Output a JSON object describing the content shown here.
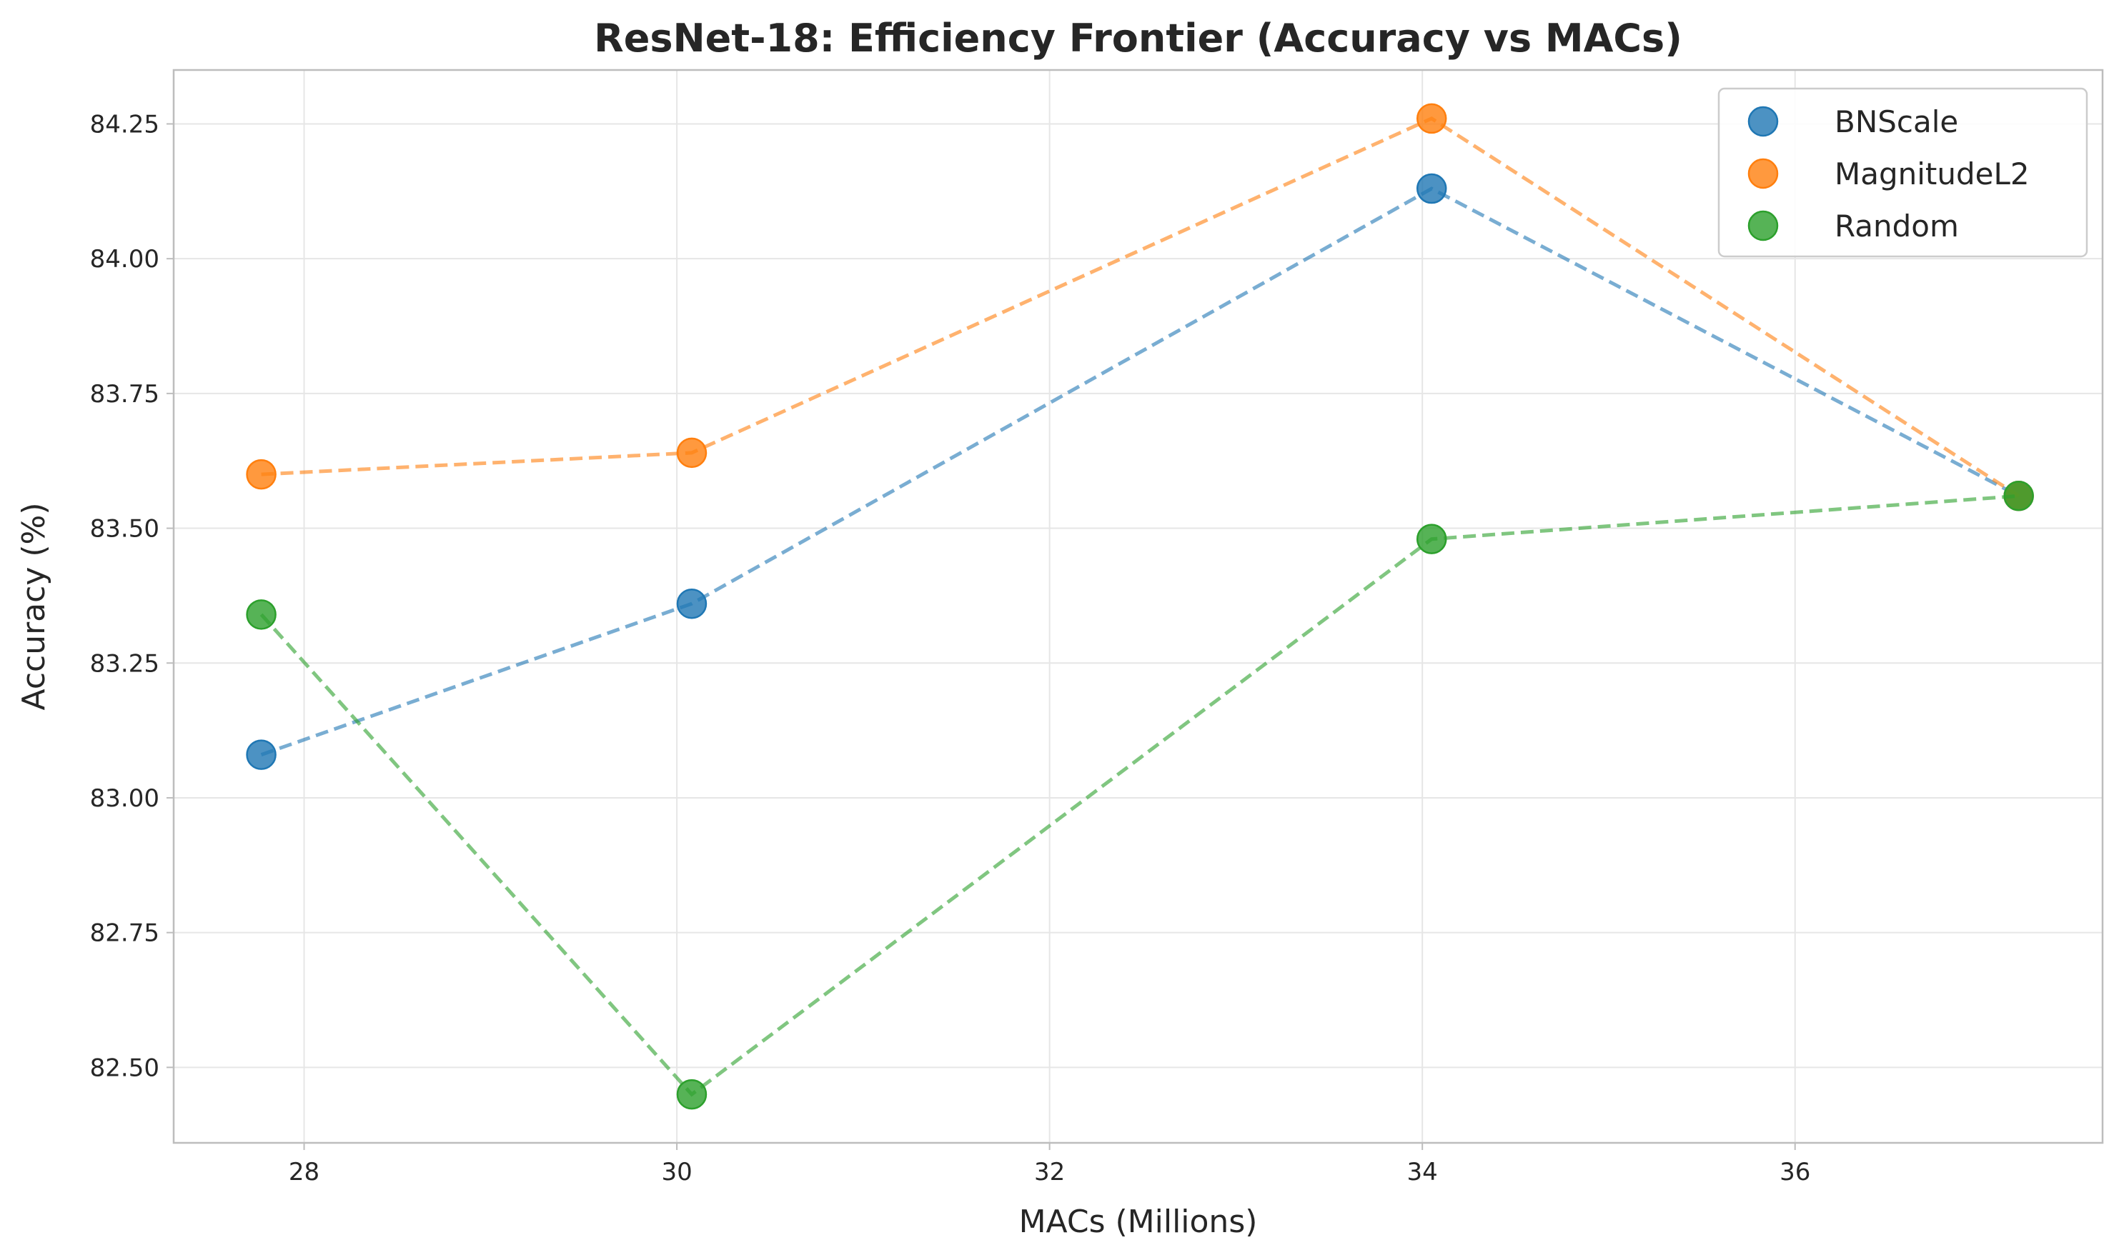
{
  "chart_data": {
    "type": "scatter",
    "title": "ResNet-18: Efficiency Frontier (Accuracy vs MACs)",
    "xlabel": "MACs (Millions)",
    "ylabel": "Accuracy (%)",
    "xlim": [
      27.3,
      37.65
    ],
    "ylim": [
      82.36,
      84.35
    ],
    "xticks": [
      28,
      30,
      32,
      34,
      36
    ],
    "xtick_labels": [
      "28",
      "30",
      "32",
      "34",
      "36"
    ],
    "yticks": [
      82.5,
      82.75,
      83.0,
      83.25,
      83.5,
      83.75,
      84.0,
      84.25
    ],
    "ytick_labels": [
      "82.50",
      "82.75",
      "83.00",
      "83.25",
      "83.50",
      "83.75",
      "84.00",
      "84.25"
    ],
    "grid": true,
    "legend_position": "top-right",
    "line_style": "dashed",
    "series": [
      {
        "name": "BNScale",
        "color": "#1f77b4",
        "x": [
          27.77,
          30.08,
          34.05,
          37.2
        ],
        "y": [
          83.08,
          83.36,
          84.13,
          83.56
        ]
      },
      {
        "name": "MagnitudeL2",
        "color": "#ff7f0e",
        "x": [
          27.77,
          30.08,
          34.05,
          37.2
        ],
        "y": [
          83.6,
          83.64,
          84.26,
          83.56
        ]
      },
      {
        "name": "Random",
        "color": "#2ca02c",
        "x": [
          27.77,
          30.08,
          34.05,
          37.2
        ],
        "y": [
          83.34,
          82.45,
          83.48,
          83.56
        ]
      }
    ]
  }
}
